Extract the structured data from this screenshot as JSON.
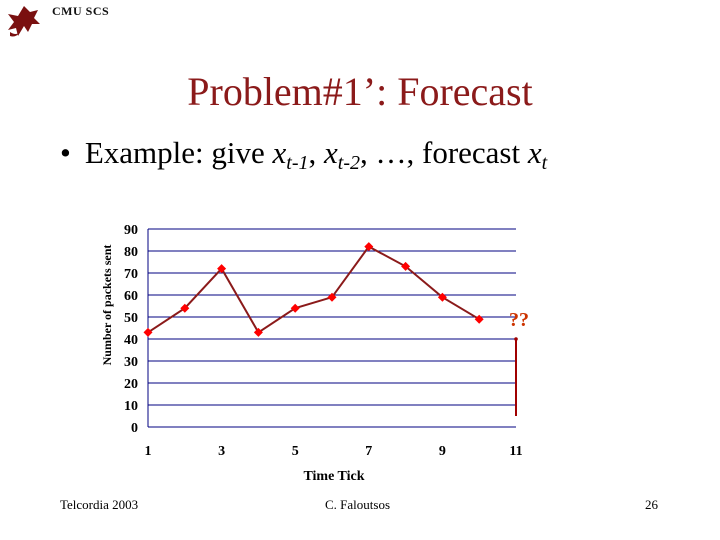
{
  "header": {
    "logo_text": "CMU SCS"
  },
  "slide": {
    "title": "Problem#1’: Forecast",
    "bullet": {
      "lead": "Example: give ",
      "x1": "x",
      "sub1": "t-1",
      "sep1": ", ",
      "x2": "x",
      "sub2": "t-2",
      "mid": ", …, forecast ",
      "x3": "x",
      "sub3": "t"
    }
  },
  "chart_data": {
    "type": "line",
    "ylabel": "Number of packets sent",
    "xlabel": "Time Tick",
    "ylim": [
      0,
      90
    ],
    "xlim": [
      1,
      11
    ],
    "yticks": [
      0,
      10,
      20,
      30,
      40,
      50,
      60,
      70,
      80,
      90
    ],
    "xticks": [
      1,
      3,
      5,
      7,
      9,
      11
    ],
    "series": [
      {
        "x": [
          1,
          2,
          3,
          4,
          5,
          6,
          7,
          8,
          9,
          10
        ],
        "values": [
          43,
          54,
          72,
          43,
          54,
          59,
          82,
          73,
          59,
          49
        ],
        "color": "#cc0000"
      }
    ],
    "annotation": {
      "text": "??",
      "x": 11,
      "color": "#cc3300"
    },
    "grid": "horizontal",
    "line_color": "#8b1a1a",
    "marker_color": "#ff0000"
  },
  "footer": {
    "left": "Telcordia 2003",
    "center": "C. Faloutsos",
    "page": "26"
  }
}
